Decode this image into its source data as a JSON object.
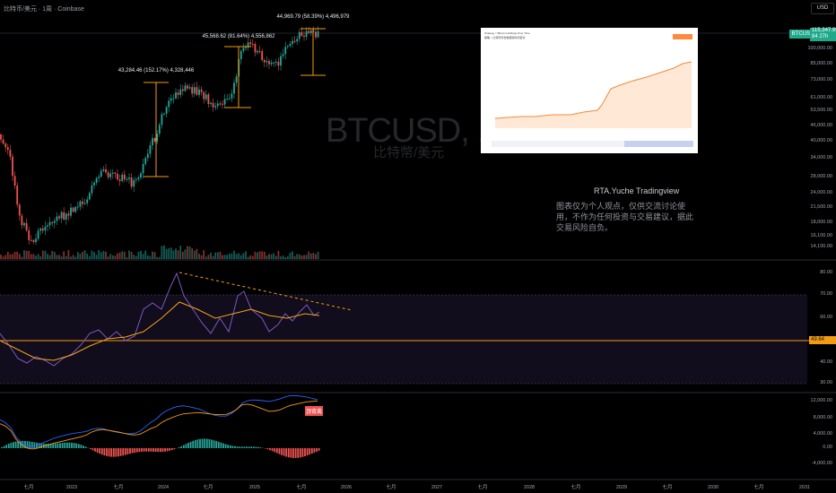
{
  "header": {
    "symbol": "比特币/美元 · 1周 · Coinbase",
    "currency": "USD"
  },
  "watermark": {
    "ticker": "BTCUSD, 1週",
    "name": "比特幣/美元"
  },
  "author": "RTA.Yuche   Tradingview",
  "disclaimer": "图表仅为个人观点，仅供交流讨论使用，不作为任何投资与交易建议，据此交易风险自负。",
  "price_label": {
    "ticker": "BTCUSD",
    "value": "115,347.99",
    "sub": "84 27h"
  },
  "rsi_tag": "49.64",
  "macd_tag": "顶背离",
  "inset": {
    "line1": "Strategy > Bitcoin Holdings Over Time",
    "line2": "策略 > 比特币持仓数量随时间变化"
  },
  "colors": {
    "up": "#26a69a",
    "down": "#ef5350",
    "rsi": "#7e57c2",
    "rsi_ma": "#f6a21a",
    "orange": "#f39c12",
    "macd": "#2962ff"
  },
  "chart_data": [
    {
      "type": "candlestick",
      "price_axis": [
        "100,000.00",
        "85,000.00",
        "73,000.00",
        "61,000.00",
        "53,500.00",
        "46,000.00",
        "40,000.00",
        "34,000.00",
        "28,000.00",
        "24,000.00",
        "21,500.00",
        "18,000.00",
        "16,100.00",
        "14,100.00"
      ],
      "time_axis": [
        "七月",
        "2023",
        "七月",
        "2024",
        "七月",
        "2025",
        "七月",
        "2026",
        "七月",
        "2027",
        "七月",
        "2028",
        "七月",
        "2029",
        "七月",
        "2030",
        "七月",
        "2031"
      ],
      "annotations": [
        "43,284.46 (152.17%) 4,328,446",
        "45,568.62 (81.64%) 4,556,862",
        "44,969.79 (58.39%) 4,496,979"
      ]
    },
    {
      "type": "line",
      "name": "RSI",
      "y_axis": [
        "80.00",
        "70.00",
        "60.00",
        "40.00",
        "30.00"
      ],
      "levels": [
        70,
        30,
        50
      ]
    },
    {
      "type": "bar",
      "name": "MACD",
      "y_axis": [
        "12,000.00",
        "8,000.00",
        "4,000.00",
        "0.00",
        "-4,000.00"
      ]
    }
  ]
}
